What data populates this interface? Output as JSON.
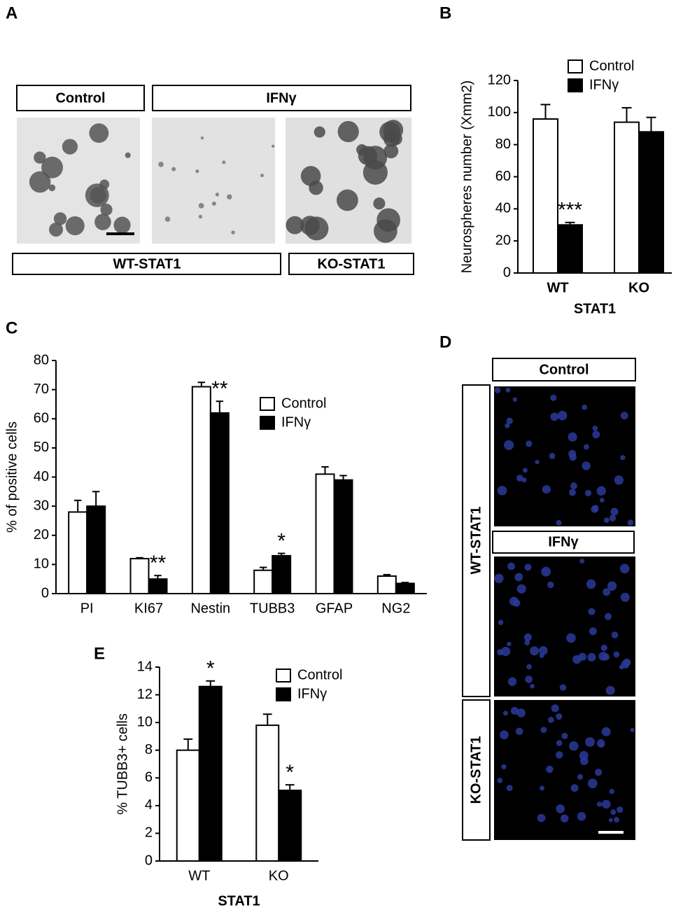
{
  "panels": {
    "A": {
      "letter": "A",
      "labels": {
        "control": "Control",
        "ifn": "IFNγ",
        "wt": "WT-STAT1",
        "ko": "KO-STAT1"
      }
    },
    "D": {
      "letter": "D",
      "labels": {
        "control": "Control",
        "ifn": "IFNγ",
        "wt": "WT-STAT1",
        "ko": "KO-STAT1"
      }
    }
  },
  "chart_data": [
    {
      "type": "bar",
      "panel": "B",
      "categories": [
        "WT",
        "KO"
      ],
      "x_label": "STAT1",
      "y_label": "Neurospheres number (Xmm2)",
      "ylim": [
        0,
        120
      ],
      "yticks": [
        0,
        20,
        40,
        60,
        80,
        100,
        120
      ],
      "series": [
        {
          "name": "Control",
          "color": "#ffffff",
          "values": [
            96,
            94
          ],
          "errors": [
            9,
            9
          ]
        },
        {
          "name": "IFNγ",
          "color": "#000000",
          "values": [
            30,
            88
          ],
          "errors": [
            1.5,
            9
          ],
          "significance": [
            null,
            null
          ]
        }
      ],
      "significance": [
        {
          "series": 1,
          "category": 0,
          "text": "***"
        }
      ]
    },
    {
      "type": "bar",
      "panel": "C",
      "categories": [
        "PI",
        "KI67",
        "Nestin",
        "TUBB3",
        "GFAP",
        "NG2"
      ],
      "y_label": "% of positive cells",
      "ylim": [
        0,
        80
      ],
      "yticks": [
        0,
        10,
        20,
        30,
        40,
        50,
        60,
        70,
        80
      ],
      "series": [
        {
          "name": "Control",
          "color": "#ffffff",
          "values": [
            28,
            12,
            71,
            8,
            41,
            6
          ],
          "errors": [
            4,
            0.3,
            1.5,
            1,
            2.5,
            0.5
          ]
        },
        {
          "name": "IFNγ",
          "color": "#000000",
          "values": [
            30,
            5,
            62,
            13,
            39,
            3.5
          ],
          "errors": [
            5,
            1.2,
            4,
            0.8,
            1.5,
            0.3
          ]
        }
      ],
      "significance": [
        {
          "series": 1,
          "category": 1,
          "text": "**"
        },
        {
          "series": 1,
          "category": 2,
          "text": "**"
        },
        {
          "series": 1,
          "category": 3,
          "text": "*"
        }
      ]
    },
    {
      "type": "bar",
      "panel": "E",
      "categories": [
        "WT",
        "KO"
      ],
      "x_label": "STAT1",
      "y_label": "% TUBB3+ cells",
      "ylim": [
        0,
        14
      ],
      "yticks": [
        0,
        2,
        4,
        6,
        8,
        10,
        12,
        14
      ],
      "series": [
        {
          "name": "Control",
          "color": "#ffffff",
          "values": [
            8,
            9.8
          ],
          "errors": [
            0.8,
            0.8
          ]
        },
        {
          "name": "IFNγ",
          "color": "#000000",
          "values": [
            12.6,
            5.1
          ],
          "errors": [
            0.4,
            0.4
          ]
        }
      ],
      "significance": [
        {
          "series": 1,
          "category": 0,
          "text": "*"
        },
        {
          "series": 1,
          "category": 1,
          "text": "*"
        }
      ]
    }
  ]
}
